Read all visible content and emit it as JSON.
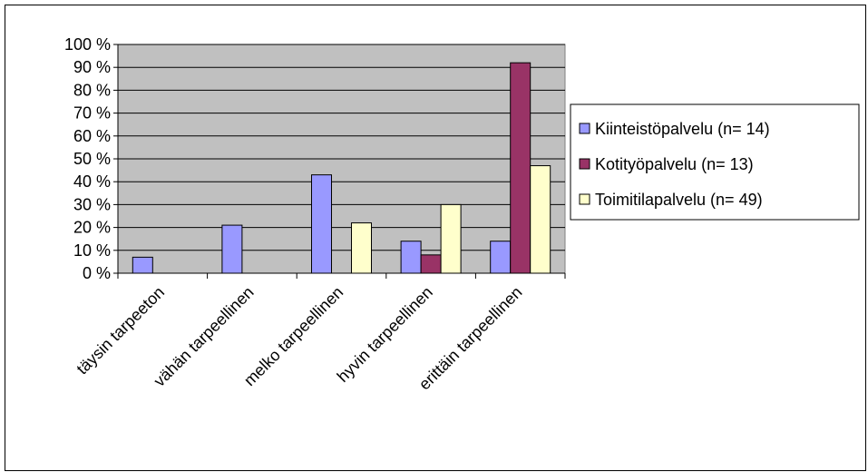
{
  "chart_data": {
    "type": "bar",
    "title": "",
    "xlabel": "",
    "ylabel": "",
    "ylim": [
      0,
      100
    ],
    "y_tick_step": 10,
    "y_tick_suffix": " %",
    "grid": true,
    "legend_position": "right",
    "categories": [
      "täysin tarpeeton",
      "vähän tarpeellinen",
      "melko tarpeellinen",
      "hyvin tarpeellinen",
      "erittäin tarpeellinen"
    ],
    "series": [
      {
        "name": "Kiinteistöpalvelu (n= 14)",
        "color": "#9999ff",
        "values": [
          7,
          21,
          43,
          14,
          14
        ]
      },
      {
        "name": "Kotityöpalvelu (n= 13)",
        "color": "#993366",
        "values": [
          0,
          0,
          0,
          8,
          92
        ]
      },
      {
        "name": "Toimitilapalvelu (n= 49)",
        "color": "#ffffcc",
        "values": [
          0,
          0,
          22,
          30,
          47
        ]
      }
    ],
    "plot_background": "#c0c0c0"
  }
}
